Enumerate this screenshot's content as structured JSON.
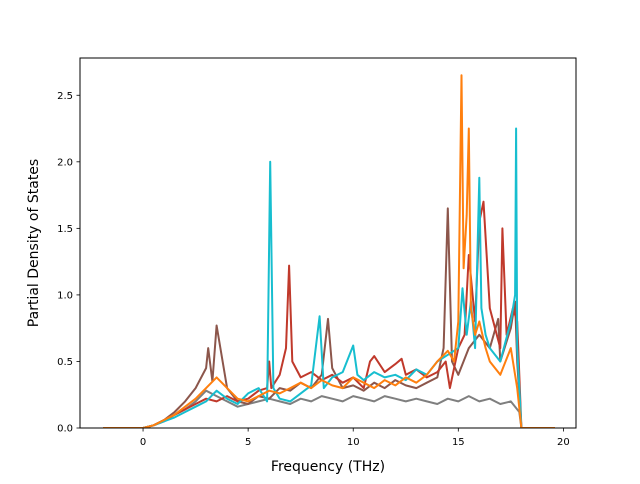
{
  "chart_data": {
    "type": "line",
    "title": "",
    "xlabel": "Frequency (THz)",
    "ylabel": "Partial Density of States",
    "xlim": [
      -3,
      20.6
    ],
    "ylim": [
      0,
      2.78
    ],
    "xticks": [
      0,
      5,
      10,
      15,
      20
    ],
    "yticks": [
      0.0,
      0.5,
      1.0,
      1.5,
      2.0,
      2.5
    ],
    "xtick_labels": [
      "0",
      "5",
      "10",
      "15",
      "20"
    ],
    "ytick_labels": [
      "0.0",
      "0.5",
      "1.0",
      "1.5",
      "2.0",
      "2.5"
    ],
    "grid": false,
    "legend": "none",
    "series": [
      {
        "color": "#7f7f7f",
        "x": [
          -1.9,
          0.0,
          0.5,
          1.0,
          1.5,
          2.0,
          2.5,
          3.0,
          3.5,
          4.0,
          4.5,
          5.0,
          5.5,
          6.0,
          6.5,
          7.0,
          7.5,
          8.0,
          8.5,
          9.0,
          9.5,
          10.0,
          10.5,
          11.0,
          11.5,
          12.0,
          12.5,
          13.0,
          13.5,
          14.0,
          14.5,
          15.0,
          15.5,
          16.0,
          16.5,
          17.0,
          17.5,
          17.9,
          18.0,
          19.6
        ],
        "y": [
          0,
          0,
          0.02,
          0.06,
          0.1,
          0.14,
          0.2,
          0.28,
          0.24,
          0.2,
          0.16,
          0.18,
          0.2,
          0.22,
          0.2,
          0.18,
          0.22,
          0.2,
          0.24,
          0.22,
          0.2,
          0.24,
          0.22,
          0.2,
          0.24,
          0.22,
          0.2,
          0.22,
          0.2,
          0.18,
          0.22,
          0.2,
          0.24,
          0.2,
          0.22,
          0.18,
          0.2,
          0.12,
          0,
          0
        ]
      },
      {
        "color": "#8c564b",
        "x": [
          -1.9,
          0.0,
          0.5,
          1.0,
          1.5,
          2.0,
          2.5,
          3.0,
          3.1,
          3.3,
          3.5,
          4.0,
          4.5,
          5.0,
          5.5,
          6.0,
          6.5,
          7.0,
          7.5,
          8.0,
          8.5,
          8.8,
          9.0,
          9.5,
          10.0,
          10.5,
          11.0,
          11.5,
          12.0,
          12.5,
          13.0,
          13.5,
          14.0,
          14.3,
          14.5,
          14.7,
          15.0,
          15.5,
          16.0,
          16.5,
          16.9,
          17.0,
          17.5,
          17.7,
          17.8,
          18.0,
          19.6
        ],
        "y": [
          0,
          0,
          0.02,
          0.06,
          0.12,
          0.2,
          0.3,
          0.45,
          0.6,
          0.35,
          0.77,
          0.3,
          0.2,
          0.18,
          0.24,
          0.22,
          0.3,
          0.28,
          0.34,
          0.3,
          0.4,
          0.82,
          0.45,
          0.3,
          0.32,
          0.28,
          0.34,
          0.3,
          0.36,
          0.32,
          0.3,
          0.34,
          0.38,
          0.6,
          1.65,
          0.5,
          0.4,
          0.6,
          0.7,
          0.6,
          0.82,
          0.5,
          0.75,
          0.95,
          0.5,
          0,
          0
        ]
      },
      {
        "color": "#c0392b",
        "x": [
          -1.9,
          0.0,
          0.5,
          1.0,
          1.5,
          2.0,
          2.5,
          3.0,
          3.5,
          4.0,
          4.5,
          5.0,
          5.5,
          5.9,
          6.0,
          6.1,
          6.5,
          6.8,
          6.95,
          7.1,
          7.5,
          8.0,
          8.5,
          9.0,
          9.5,
          10.0,
          10.5,
          10.8,
          11.0,
          11.5,
          12.0,
          12.3,
          12.5,
          13.0,
          13.5,
          14.0,
          14.4,
          14.6,
          15.0,
          15.3,
          15.5,
          15.8,
          16.0,
          16.2,
          16.5,
          17.0,
          17.1,
          17.3,
          17.6,
          17.8,
          18.0,
          19.6
        ],
        "y": [
          0,
          0,
          0.02,
          0.05,
          0.1,
          0.14,
          0.18,
          0.22,
          0.2,
          0.24,
          0.2,
          0.22,
          0.28,
          0.3,
          0.5,
          0.3,
          0.4,
          0.6,
          1.22,
          0.5,
          0.38,
          0.42,
          0.36,
          0.4,
          0.34,
          0.38,
          0.3,
          0.5,
          0.54,
          0.42,
          0.48,
          0.52,
          0.4,
          0.44,
          0.38,
          0.42,
          0.5,
          0.3,
          0.6,
          0.7,
          1.3,
          0.8,
          1.55,
          1.7,
          0.9,
          0.6,
          1.5,
          0.7,
          0.9,
          0.8,
          0,
          0
        ]
      },
      {
        "color": "#17becf",
        "x": [
          -1.9,
          0.0,
          0.5,
          1.0,
          1.5,
          2.0,
          2.5,
          3.0,
          3.5,
          4.0,
          4.5,
          5.0,
          5.5,
          5.9,
          6.05,
          6.2,
          6.5,
          7.0,
          7.5,
          8.0,
          8.4,
          8.6,
          9.0,
          9.5,
          10.0,
          10.2,
          10.5,
          11.0,
          11.5,
          12.0,
          12.5,
          13.0,
          13.5,
          14.0,
          14.5,
          15.0,
          15.2,
          15.4,
          15.6,
          15.8,
          16.0,
          16.1,
          16.3,
          16.5,
          17.0,
          17.5,
          17.7,
          17.75,
          17.8,
          18.0,
          19.6
        ],
        "y": [
          0,
          0,
          0.02,
          0.05,
          0.08,
          0.12,
          0.16,
          0.2,
          0.28,
          0.22,
          0.18,
          0.26,
          0.3,
          0.2,
          2.0,
          0.3,
          0.22,
          0.2,
          0.26,
          0.32,
          0.84,
          0.3,
          0.38,
          0.42,
          0.62,
          0.4,
          0.36,
          0.42,
          0.38,
          0.4,
          0.36,
          0.44,
          0.4,
          0.5,
          0.55,
          0.6,
          1.05,
          0.7,
          0.95,
          0.6,
          1.88,
          0.9,
          0.7,
          0.6,
          0.5,
          0.8,
          1.0,
          2.25,
          0.6,
          0,
          0
        ]
      },
      {
        "color": "#ff7f0e",
        "x": [
          -1.9,
          0.0,
          0.5,
          1.0,
          1.5,
          2.0,
          2.5,
          3.0,
          3.5,
          4.0,
          4.5,
          5.0,
          5.5,
          6.0,
          6.5,
          7.0,
          7.5,
          8.0,
          8.5,
          9.0,
          9.5,
          10.0,
          10.5,
          11.0,
          11.5,
          12.0,
          12.5,
          13.0,
          13.5,
          14.0,
          14.5,
          14.8,
          15.0,
          15.15,
          15.25,
          15.4,
          15.5,
          15.6,
          15.8,
          16.0,
          16.3,
          16.5,
          17.0,
          17.5,
          17.8,
          18.0,
          19.6
        ],
        "y": [
          0,
          0,
          0.02,
          0.06,
          0.1,
          0.16,
          0.22,
          0.3,
          0.38,
          0.3,
          0.22,
          0.2,
          0.24,
          0.28,
          0.26,
          0.3,
          0.34,
          0.3,
          0.36,
          0.32,
          0.3,
          0.38,
          0.34,
          0.3,
          0.36,
          0.32,
          0.38,
          0.34,
          0.4,
          0.5,
          0.58,
          0.5,
          0.8,
          2.65,
          1.2,
          1.6,
          2.25,
          0.9,
          0.7,
          0.8,
          0.6,
          0.5,
          0.4,
          0.6,
          0.3,
          0,
          0
        ]
      }
    ]
  }
}
